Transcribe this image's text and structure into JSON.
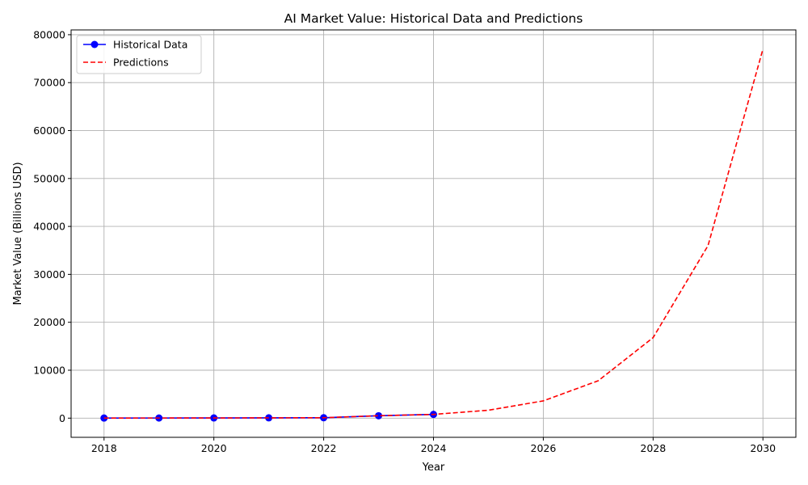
{
  "chart_data": {
    "type": "line",
    "title": "AI Market Value: Historical Data and Predictions",
    "xlabel": "Year",
    "ylabel": "Market Value (Billions USD)",
    "xlim": [
      2017.4,
      2030.6
    ],
    "ylim": [
      -4000,
      81000
    ],
    "xticks": [
      2018,
      2020,
      2022,
      2024,
      2026,
      2028,
      2030
    ],
    "yticks": [
      0,
      10000,
      20000,
      30000,
      40000,
      50000,
      60000,
      70000,
      80000
    ],
    "grid": true,
    "legend_position": "top-left",
    "series": [
      {
        "name": "Historical Data",
        "color": "#0000ff",
        "style": "solid-with-circle-markers",
        "x": [
          2018,
          2019,
          2020,
          2021,
          2022,
          2023,
          2024
        ],
        "y": [
          21,
          27,
          38,
          59,
          87,
          500,
          780
        ]
      },
      {
        "name": "Predictions",
        "color": "#ff0000",
        "style": "dashed",
        "x": [
          2018,
          2019,
          2020,
          2021,
          2022,
          2023,
          2024,
          2025,
          2026,
          2027,
          2028,
          2029,
          2030
        ],
        "y": [
          21,
          27,
          38,
          59,
          87,
          500,
          780,
          1650,
          3600,
          7800,
          16800,
          36000,
          77000
        ]
      }
    ]
  }
}
